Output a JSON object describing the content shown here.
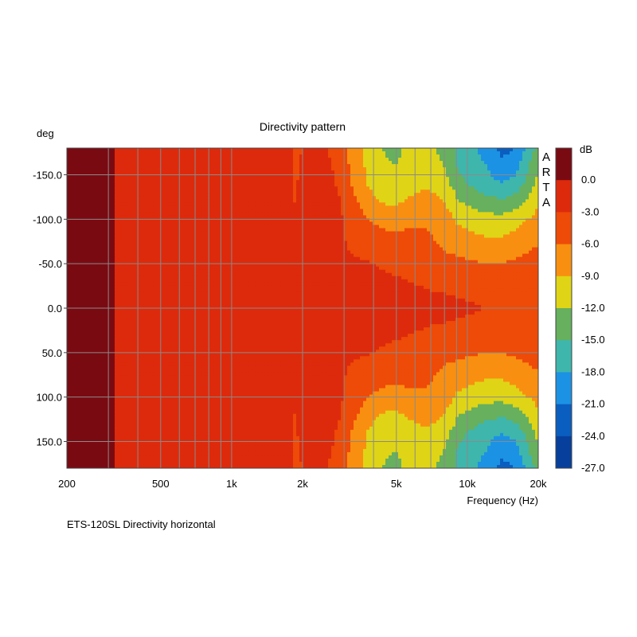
{
  "chart_data": {
    "type": "heatmap",
    "title": "Directivity pattern",
    "ylabel": "deg",
    "xlabel": "Frequency (Hz)",
    "caption": "ETS-120SL  Directivity horizontal",
    "brand": "ARTA",
    "x_scale": "log",
    "xlim": [
      200,
      20000
    ],
    "ylim": [
      -180,
      180
    ],
    "x_ticks": [
      {
        "value": 200,
        "label": "200"
      },
      {
        "value": 500,
        "label": "500"
      },
      {
        "value": 1000,
        "label": "1k"
      },
      {
        "value": 2000,
        "label": "2k"
      },
      {
        "value": 5000,
        "label": "5k"
      },
      {
        "value": 10000,
        "label": "10k"
      },
      {
        "value": 20000,
        "label": "20k"
      }
    ],
    "y_ticks": [
      {
        "value": -150,
        "label": "-150.0"
      },
      {
        "value": -100,
        "label": "-100.0"
      },
      {
        "value": -50,
        "label": "-50.0"
      },
      {
        "value": 0,
        "label": "0.0"
      },
      {
        "value": 50,
        "label": "50.0"
      },
      {
        "value": 100,
        "label": "100.0"
      },
      {
        "value": 150,
        "label": "150.0"
      }
    ],
    "colorbar": {
      "unit": "dB",
      "levels": [
        0.0,
        -3.0,
        -6.0,
        -9.0,
        -12.0,
        -15.0,
        -18.0,
        -21.0,
        -24.0,
        -27.0
      ],
      "labels": [
        "0.0",
        "-3.0",
        "-6.0",
        "-9.0",
        "-12.0",
        "-15.0",
        "-18.0",
        "-21.0",
        "-24.0",
        "-27.0"
      ],
      "colors": [
        "#7a0a12",
        "#dd2a0c",
        "#ee4a08",
        "#f98f10",
        "#dfd516",
        "#66b05e",
        "#3fb6ac",
        "#1c92e4",
        "#0a5ec0",
        "#073f9c"
      ]
    },
    "frequencies": [
      200,
      300,
      330,
      500,
      1000,
      1600,
      2000,
      2500,
      3000,
      4000,
      5000,
      6000,
      7000,
      8000,
      10000,
      12000,
      14000,
      16000,
      18000,
      20000
    ],
    "angles": [
      -180,
      -160,
      -140,
      -120,
      -100,
      -80,
      -60,
      -40,
      -20,
      0,
      20,
      40,
      60,
      80,
      100,
      120,
      140,
      160,
      180
    ],
    "db_at_180_deg": [
      1,
      1,
      -1.5,
      -2.5,
      -2.5,
      -3,
      -4,
      -6,
      -8,
      -10,
      -12,
      -13,
      -15,
      -16,
      -18,
      -20,
      -23,
      -22,
      -18,
      -15
    ],
    "db_at_140_deg": [
      1,
      1,
      -1.5,
      -2.5,
      -2.5,
      -2.8,
      -3.5,
      -5,
      -7,
      -9,
      -11,
      -12,
      -13,
      -14,
      -16,
      -18,
      -19,
      -18,
      -15,
      -12
    ],
    "db_at_100_deg": [
      1,
      1,
      -1.5,
      -2.5,
      -2.5,
      -2.7,
      -3,
      -4,
      -5,
      -6,
      -7,
      -8,
      -9,
      -10,
      -11,
      -12,
      -12,
      -11,
      -10,
      -9
    ],
    "db_at_50_deg": [
      1,
      1,
      -1.5,
      -2.5,
      -2.5,
      -2.6,
      -2.8,
      -3.2,
      -3.5,
      -4,
      -4.5,
      -5,
      -5.5,
      -6,
      -6.5,
      -7,
      -7,
      -6.5,
      -6,
      -5.5
    ],
    "db_at_0_deg": [
      1,
      1,
      -1.5,
      -2.5,
      -2.5,
      -2.5,
      -2.5,
      -2.5,
      -2.5,
      -2.6,
      -2.7,
      -2.8,
      -3,
      -3,
      -3.5,
      -4,
      -4,
      -4,
      -4,
      -4
    ]
  }
}
